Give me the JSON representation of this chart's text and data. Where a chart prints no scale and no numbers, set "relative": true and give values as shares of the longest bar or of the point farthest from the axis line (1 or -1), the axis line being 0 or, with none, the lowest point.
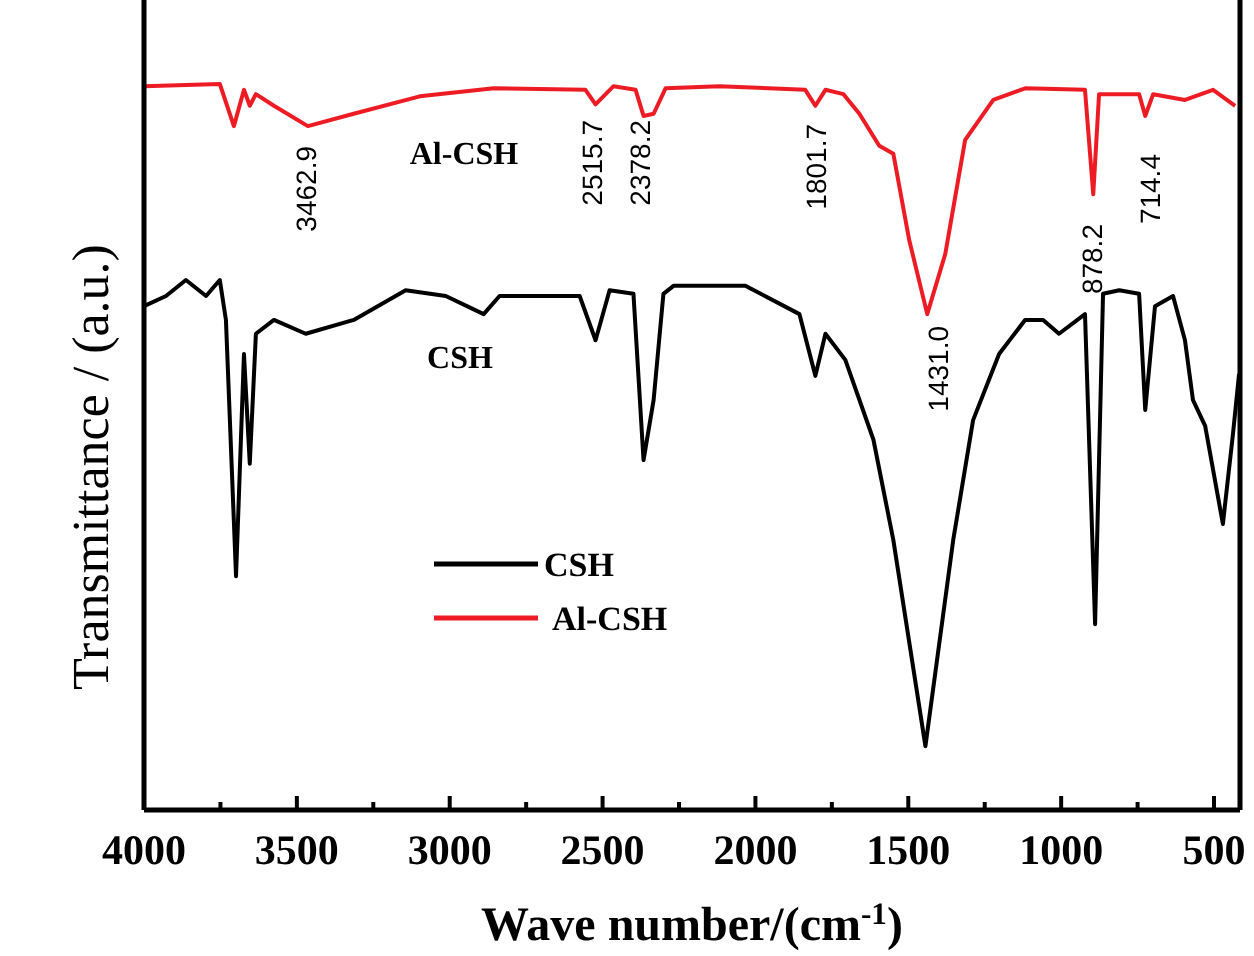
{
  "chart_data": {
    "type": "line",
    "relative": true,
    "xlabel": "Wave number/(cm$^{-1}$)",
    "ylabel": "Transmittance / (a.u.)",
    "xlim": [
      4000,
      415
    ],
    "xticks": [
      4000,
      {
        "value": 3750,
        "label": null
      },
      3500,
      {
        "value": 3250,
        "label": null
      },
      3000,
      {
        "value": 2750,
        "label": null
      },
      2500,
      {
        "value": 2250,
        "label": null
      },
      2000,
      {
        "value": 1750,
        "label": null
      },
      1500,
      {
        "value": 1250,
        "label": null
      },
      1000,
      {
        "value": 750,
        "label": null
      },
      500
    ],
    "legend": "bottom left",
    "grid": false,
    "marker": "none",
    "line_style": "solid",
    "series": [
      {
        "name": "CSH",
        "color": "#000000",
        "x": [
          4000,
          3928,
          3863,
          3797,
          3752,
          3732,
          3699,
          3673,
          3654,
          3634,
          3575,
          3471,
          3314,
          3144,
          3013,
          2889,
          2837,
          2575,
          2523,
          2477,
          2399,
          2366,
          2333,
          2301,
          2268,
          2033,
          1856,
          1804,
          1771,
          1706,
          1614,
          1549,
          1444,
          1353,
          1288,
          1203,
          1118,
          1059,
          1007,
          922,
          889,
          863,
          810,
          745,
          725,
          693,
          634,
          595,
          569,
          529,
          471,
          438,
          418
        ],
        "values": [
          0.694,
          0.708,
          0.73,
          0.708,
          0.73,
          0.675,
          0.322,
          0.628,
          0.477,
          0.656,
          0.675,
          0.656,
          0.675,
          0.716,
          0.708,
          0.683,
          0.708,
          0.708,
          0.647,
          0.716,
          0.711,
          0.482,
          0.565,
          0.711,
          0.722,
          0.722,
          0.683,
          0.598,
          0.656,
          0.62,
          0.51,
          0.372,
          0.088,
          0.372,
          0.537,
          0.628,
          0.675,
          0.675,
          0.656,
          0.683,
          0.256,
          0.711,
          0.716,
          0.711,
          0.551,
          0.694,
          0.708,
          0.647,
          0.565,
          0.529,
          0.394,
          0.518,
          0.601
        ]
      },
      {
        "name": "Al-CSH",
        "color": "#ed1c24",
        "x": [
          4000,
          3752,
          3706,
          3673,
          3654,
          3634,
          3575,
          3464,
          3314,
          3098,
          2856,
          2556,
          2523,
          2464,
          2392,
          2366,
          2333,
          2294,
          2118,
          1837,
          1804,
          1771,
          1712,
          1660,
          1595,
          1549,
          1497,
          1438,
          1379,
          1314,
          1222,
          1118,
          922,
          895,
          876,
          745,
          725,
          699,
          595,
          503,
          431
        ],
        "values": [
          0.997,
          1,
          0.942,
          0.992,
          0.97,
          0.986,
          0.97,
          0.942,
          0.959,
          0.983,
          0.994,
          0.992,
          0.972,
          0.997,
          0.992,
          0.956,
          0.959,
          0.994,
          0.997,
          0.992,
          0.97,
          0.992,
          0.986,
          0.959,
          0.915,
          0.904,
          0.785,
          0.683,
          0.766,
          0.923,
          0.978,
          0.994,
          0.992,
          0.848,
          0.986,
          0.986,
          0.956,
          0.986,
          0.978,
          0.992,
          0.97
        ]
      }
    ],
    "annotations": [
      "3462.9",
      "2515.7",
      "2378.2",
      "1801.7",
      "1431.0",
      "878.2",
      "714.4",
      "Al-CSH",
      "CSH"
    ]
  }
}
